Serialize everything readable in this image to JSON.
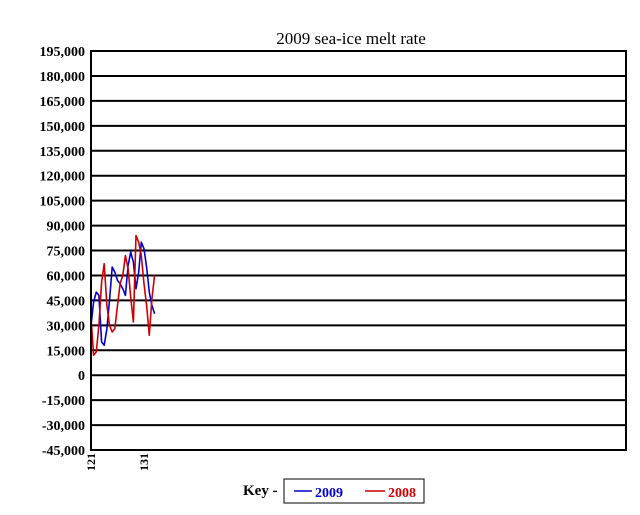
{
  "chart_data": {
    "type": "line",
    "title": "2009 sea-ice melt rate",
    "xlabel": "",
    "ylabel": "",
    "ylim": [
      -45000,
      195000
    ],
    "yticks": [
      "195,000",
      "180,000",
      "165,000",
      "150,000",
      "135,000",
      "120,000",
      "105,000",
      "90,000",
      "75,000",
      "60,000",
      "45,000",
      "30,000",
      "15,000",
      "0",
      "-15,000",
      "-30,000",
      "-45,000"
    ],
    "xlim": [
      121,
      222
    ],
    "xtick_labels": [
      {
        "x": 121,
        "label": "121"
      },
      {
        "x": 131,
        "label": "131"
      }
    ],
    "grid": true,
    "legend": {
      "prefix": "Key -",
      "placement": "bottom-center"
    },
    "series": [
      {
        "name": "2009",
        "color": "#0000cc",
        "x": [
          121,
          121.5,
          122,
          122.5,
          123,
          123.5,
          124,
          124.5,
          125,
          125.5,
          126,
          126.5,
          127,
          127.5,
          128,
          128.5,
          129,
          129.5,
          130,
          130.5,
          131,
          131.5,
          132,
          132.5,
          133
        ],
        "y": [
          30000,
          44000,
          50000,
          48000,
          20000,
          18000,
          28000,
          45000,
          65000,
          62000,
          57000,
          55000,
          52000,
          48000,
          66000,
          74000,
          68000,
          52000,
          62000,
          80000,
          76000,
          65000,
          50000,
          42000,
          37000
        ]
      },
      {
        "name": "2008",
        "color": "#cc0000",
        "x": [
          121,
          121.5,
          122,
          122.5,
          123,
          123.5,
          124,
          124.5,
          125,
          125.5,
          126,
          126.5,
          127,
          127.5,
          128,
          128.5,
          129,
          129.5,
          130,
          130.5,
          131,
          131.5,
          132,
          132.5,
          133
        ],
        "y": [
          35000,
          12000,
          14000,
          30000,
          56000,
          67000,
          42000,
          30000,
          26000,
          28000,
          42000,
          55000,
          60000,
          72000,
          64000,
          47000,
          32000,
          84000,
          80000,
          72000,
          55000,
          42000,
          24000,
          46000,
          60000
        ]
      }
    ]
  }
}
